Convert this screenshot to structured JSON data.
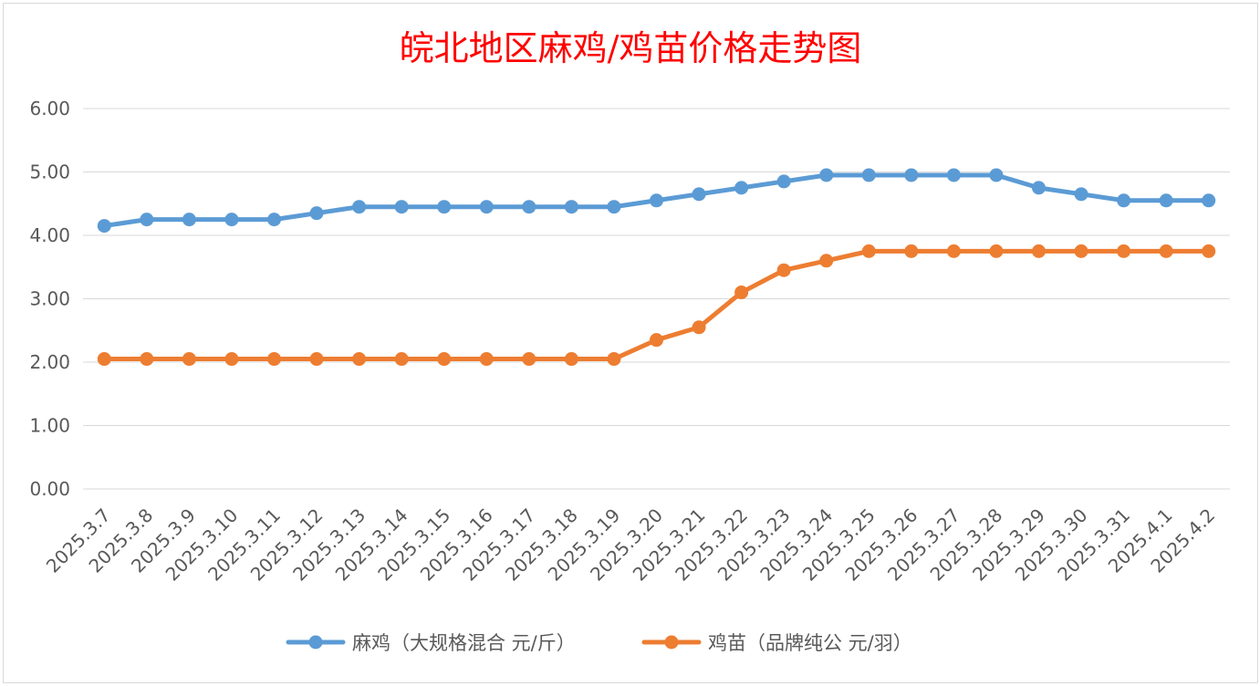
{
  "chart_data": {
    "type": "line",
    "title": "皖北地区麻鸡/鸡苗价格走势图",
    "categories": [
      "2025.3.7",
      "2025.3.8",
      "2025.3.9",
      "2025.3.10",
      "2025.3.11",
      "2025.3.12",
      "2025.3.13",
      "2025.3.14",
      "2025.3.15",
      "2025.3.16",
      "2025.3.17",
      "2025.3.18",
      "2025.3.19",
      "2025.3.20",
      "2025.3.21",
      "2025.3.22",
      "2025.3.23",
      "2025.3.24",
      "2025.3.25",
      "2025.3.26",
      "2025.3.27",
      "2025.3.28",
      "2025.3.29",
      "2025.3.30",
      "2025.3.31",
      "2025.4.1",
      "2025.4.2"
    ],
    "series": [
      {
        "name": "麻鸡（大规格混合 元/斤）",
        "color": "#5b9bd5",
        "values": [
          4.15,
          4.25,
          4.25,
          4.25,
          4.25,
          4.35,
          4.45,
          4.45,
          4.45,
          4.45,
          4.45,
          4.45,
          4.45,
          4.55,
          4.65,
          4.75,
          4.85,
          4.95,
          4.95,
          4.95,
          4.95,
          4.95,
          4.75,
          4.65,
          4.55,
          4.55,
          4.55
        ]
      },
      {
        "name": "鸡苗（品牌纯公 元/羽）",
        "color": "#ed7d31",
        "values": [
          2.05,
          2.05,
          2.05,
          2.05,
          2.05,
          2.05,
          2.05,
          2.05,
          2.05,
          2.05,
          2.05,
          2.05,
          2.05,
          2.35,
          2.55,
          3.1,
          3.45,
          3.6,
          3.75,
          3.75,
          3.75,
          3.75,
          3.75,
          3.75,
          3.75,
          3.75,
          3.75
        ]
      }
    ],
    "ylim": [
      0,
      6
    ],
    "yticks": [
      "0.00",
      "1.00",
      "2.00",
      "3.00",
      "4.00",
      "5.00",
      "6.00"
    ],
    "xlabel": "",
    "ylabel": "",
    "grid": true,
    "legend_position": "bottom"
  }
}
